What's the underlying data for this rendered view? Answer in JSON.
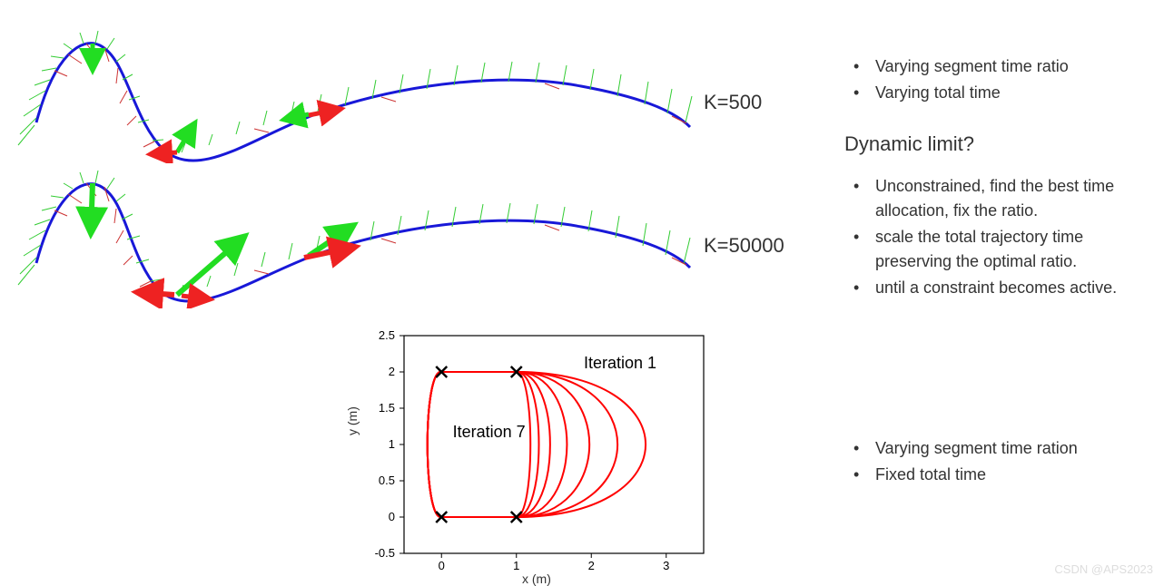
{
  "trajectories": {
    "k1_label": "K=500",
    "k2_label": "K=50000",
    "curve_color": "#1818d8",
    "vel_tick_color": "#33cc33",
    "acc_tick_color": "#cc3333",
    "big_arrow_vel": "#22dd22",
    "big_arrow_acc": "#ee2222",
    "curve_width": 3,
    "tick_width": 1
  },
  "top_bullets": [
    "Varying segment time ratio",
    "Varying total time"
  ],
  "heading": "Dynamic limit?",
  "mid_bullets": [
    "Unconstrained, find the best time allocation, fix the ratio.",
    "scale the total trajectory time preserving the optimal ratio.",
    "until a constraint becomes active."
  ],
  "bottom_bullets": [
    "Varying segment time ration",
    "Fixed total time"
  ],
  "iter_chart": {
    "xlabel": "x (m)",
    "ylabel": "y (m)",
    "xlim": [
      -0.5,
      3.5
    ],
    "ylim": [
      -0.5,
      2.5
    ],
    "xticks": [
      0,
      1,
      2,
      3
    ],
    "yticks": [
      -0.5,
      0,
      0.5,
      1,
      1.5,
      2,
      2.5
    ],
    "line_color": "#ff0000",
    "line_width": 2,
    "axis_color": "#000000",
    "waypoints": [
      [
        0,
        0
      ],
      [
        1,
        0
      ],
      [
        0,
        2
      ],
      [
        1,
        2
      ]
    ],
    "anno1": "Iteration 1",
    "anno7": "Iteration 7",
    "iterations": [
      3.3,
      2.8,
      2.3,
      1.9,
      1.6,
      1.4,
      1.25
    ]
  },
  "watermark": "CSDN @APS2023"
}
